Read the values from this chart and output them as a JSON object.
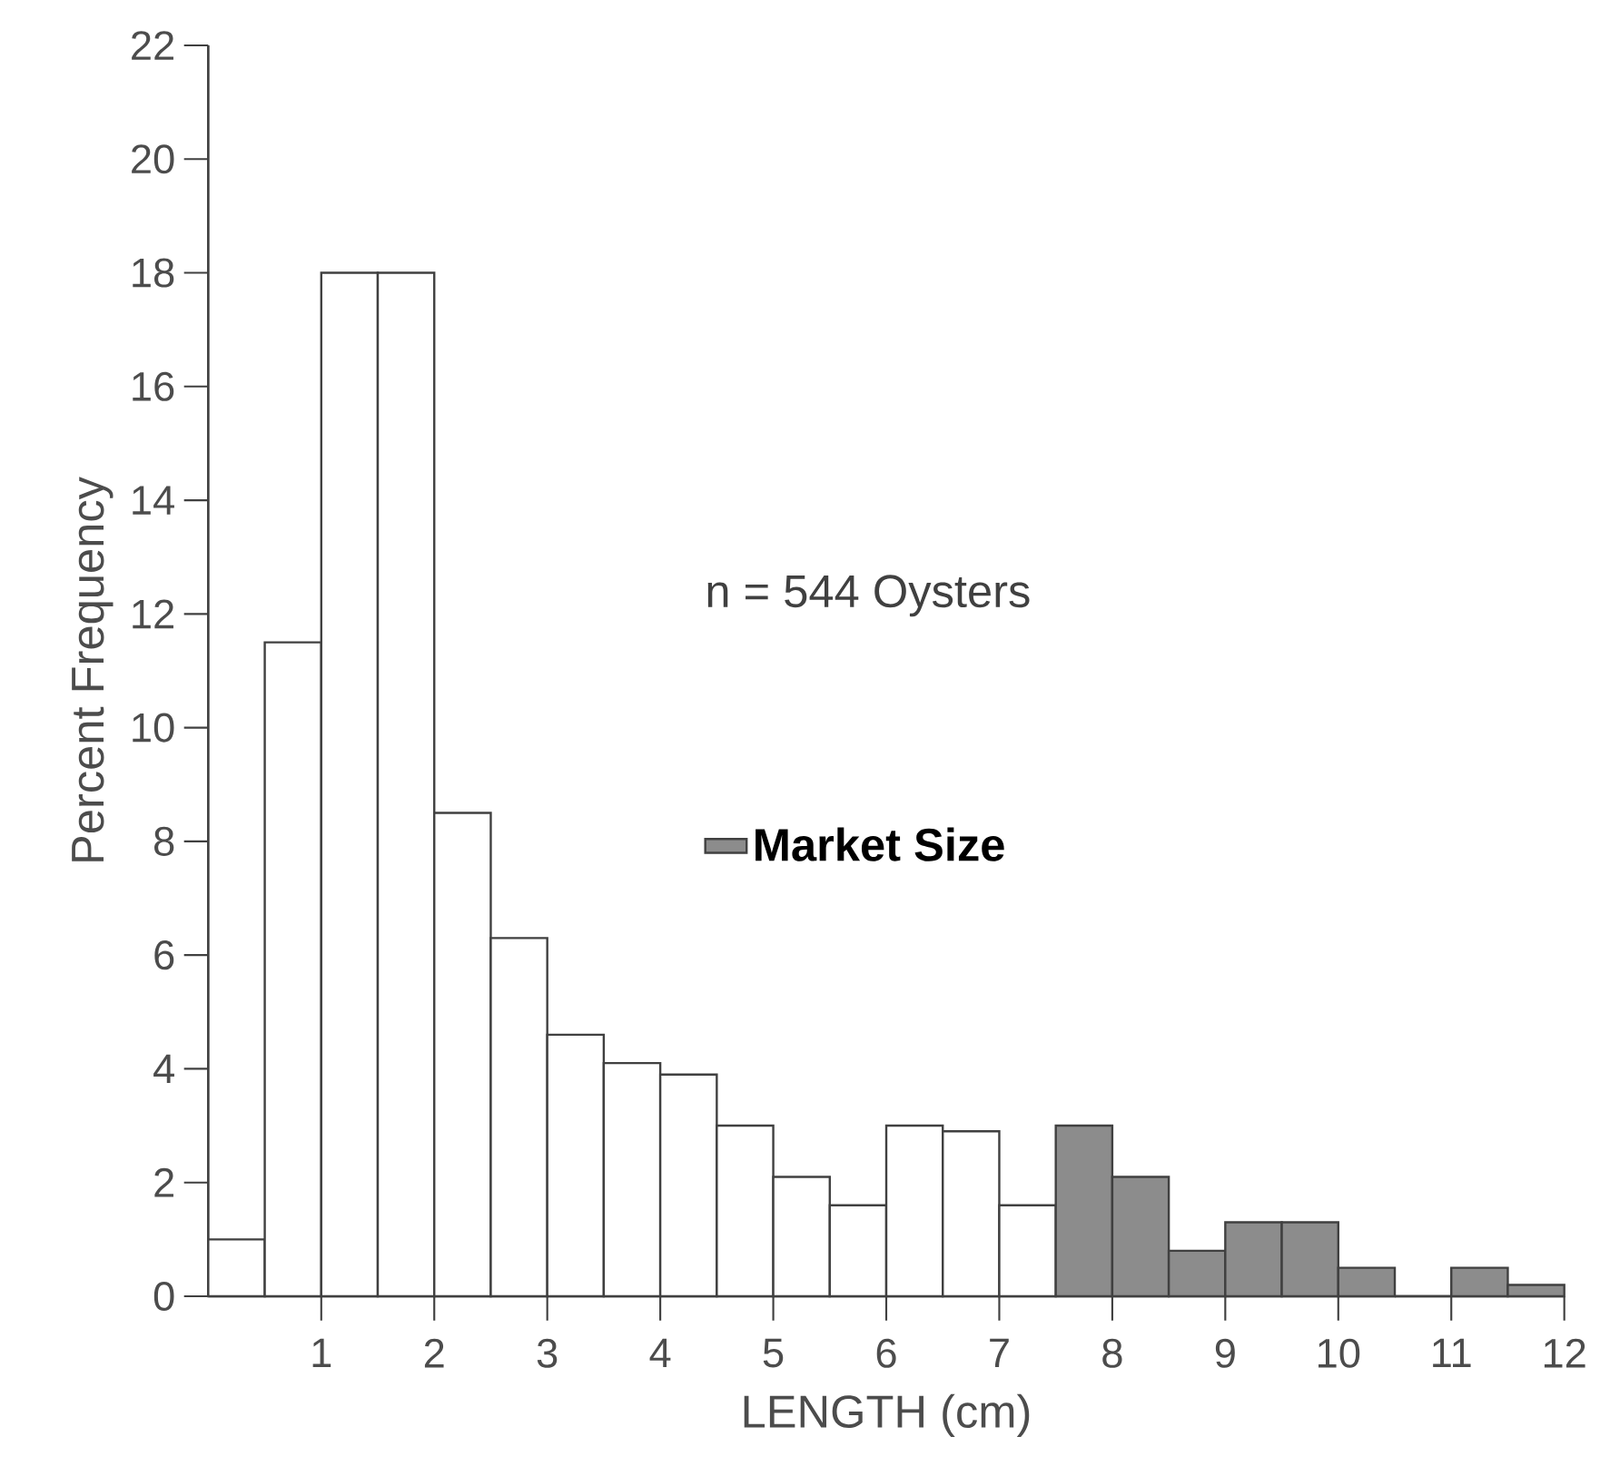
{
  "chart_data": {
    "type": "histogram",
    "xlabel": "LENGTH (cm)",
    "ylabel": "Percent Frequency",
    "annotations": [
      "n = 544 Oysters"
    ],
    "bins": [
      0,
      0.5,
      1,
      1.5,
      2,
      2.5,
      3,
      3.5,
      4,
      4.5,
      5,
      5.5,
      6,
      6.5,
      7,
      7.5,
      8,
      8.5,
      9,
      9.5,
      10,
      10.5,
      11,
      11.5,
      12
    ],
    "series": [
      {
        "color": "#ffffff",
        "values": [
          1,
          11.5,
          18,
          18,
          8.5,
          6.3,
          4.6,
          4.1,
          3.9,
          3.0,
          2.1,
          1.6,
          3.0,
          2.9,
          1.6,
          null,
          null,
          null,
          null,
          null,
          null,
          null,
          null,
          null
        ]
      },
      {
        "name": "Market Size",
        "color": "#8c8c8c",
        "values": [
          null,
          null,
          null,
          null,
          null,
          null,
          null,
          null,
          null,
          null,
          null,
          null,
          null,
          null,
          null,
          3.0,
          2.1,
          0.8,
          1.3,
          1.3,
          0.5,
          0,
          0.5,
          0.2
        ]
      }
    ],
    "xlim": [
      0,
      12
    ],
    "ylim": [
      0,
      22
    ],
    "xticks": [
      1,
      2,
      3,
      4,
      5,
      6,
      7,
      8,
      9,
      10,
      11,
      12
    ],
    "yticks": [
      0,
      2,
      4,
      6,
      8,
      10,
      12,
      14,
      16,
      18,
      20,
      22
    ],
    "legend": "center"
  }
}
